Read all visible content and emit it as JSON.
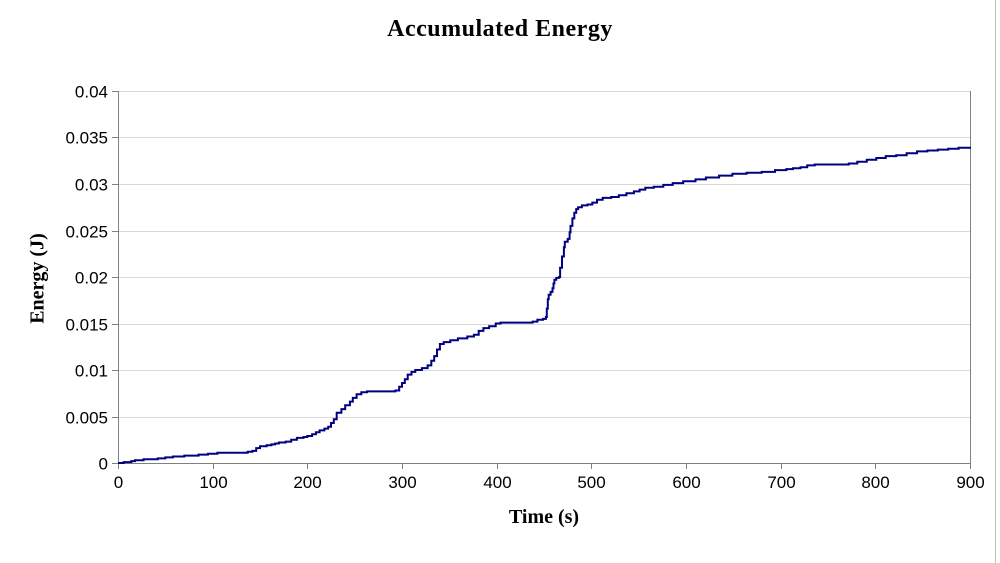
{
  "chart": {
    "title": "Accumulated Energy",
    "x_axis": {
      "label": "Time (s)",
      "ticks": [
        0,
        100,
        200,
        300,
        400,
        500,
        600,
        700,
        800,
        900
      ],
      "tick_labels": [
        "0",
        "100",
        "200",
        "300",
        "400",
        "500",
        "600",
        "700",
        "800",
        "900"
      ]
    },
    "y_axis": {
      "label": "Energy (J)",
      "ticks": [
        0,
        0.005,
        0.01,
        0.015,
        0.02,
        0.025,
        0.03,
        0.035,
        0.04
      ],
      "tick_labels": [
        "0",
        "0.005",
        "0.01",
        "0.015",
        "0.02",
        "0.025",
        "0.03",
        "0.035",
        "0.04"
      ]
    },
    "colors": {
      "line": "#000080",
      "gridline": "#d8d8d8",
      "axis": "#808080",
      "background": "#ffffff",
      "outer_border": "#c0c0c0"
    }
  },
  "chart_data": {
    "type": "line",
    "title": "Accumulated Energy",
    "xlabel": "Time (s)",
    "ylabel": "Energy (J)",
    "xlim": [
      0,
      900
    ],
    "ylim": [
      0,
      0.04
    ],
    "grid": true,
    "legend_position": "none",
    "series": [
      {
        "name": "Accumulated Energy",
        "color": "#000080",
        "step": true,
        "points": [
          [
            0,
            0.0
          ],
          [
            6,
            0.0001
          ],
          [
            14,
            0.0002
          ],
          [
            18,
            0.0003
          ],
          [
            27,
            0.0004
          ],
          [
            42,
            0.0005
          ],
          [
            50,
            0.0006
          ],
          [
            58,
            0.0007
          ],
          [
            70,
            0.0008
          ],
          [
            85,
            0.0009
          ],
          [
            95,
            0.001
          ],
          [
            105,
            0.0011
          ],
          [
            133,
            0.0011
          ],
          [
            137,
            0.0012
          ],
          [
            142,
            0.0013
          ],
          [
            146,
            0.0016
          ],
          [
            150,
            0.0018
          ],
          [
            157,
            0.0019
          ],
          [
            162,
            0.002
          ],
          [
            166,
            0.0021
          ],
          [
            170,
            0.0022
          ],
          [
            177,
            0.0023
          ],
          [
            183,
            0.0025
          ],
          [
            189,
            0.0027
          ],
          [
            196,
            0.0028
          ],
          [
            200,
            0.0029
          ],
          [
            205,
            0.0031
          ],
          [
            209,
            0.0033
          ],
          [
            213,
            0.0035
          ],
          [
            218,
            0.0037
          ],
          [
            222,
            0.0039
          ],
          [
            225,
            0.0043
          ],
          [
            228,
            0.0047
          ],
          [
            231,
            0.0054
          ],
          [
            236,
            0.0058
          ],
          [
            240,
            0.0062
          ],
          [
            245,
            0.0066
          ],
          [
            248,
            0.007
          ],
          [
            252,
            0.0074
          ],
          [
            257,
            0.0076
          ],
          [
            263,
            0.0077
          ],
          [
            293,
            0.0078
          ],
          [
            297,
            0.0082
          ],
          [
            300,
            0.0086
          ],
          [
            303,
            0.009
          ],
          [
            306,
            0.0095
          ],
          [
            310,
            0.0098
          ],
          [
            314,
            0.01
          ],
          [
            321,
            0.0102
          ],
          [
            327,
            0.0105
          ],
          [
            331,
            0.011
          ],
          [
            334,
            0.0115
          ],
          [
            337,
            0.0122
          ],
          [
            340,
            0.0128
          ],
          [
            344,
            0.013
          ],
          [
            351,
            0.0132
          ],
          [
            359,
            0.0134
          ],
          [
            369,
            0.0136
          ],
          [
            376,
            0.0138
          ],
          [
            381,
            0.0142
          ],
          [
            386,
            0.0145
          ],
          [
            392,
            0.0147
          ],
          [
            399,
            0.015
          ],
          [
            404,
            0.0151
          ],
          [
            438,
            0.0152
          ],
          [
            443,
            0.0154
          ],
          [
            449,
            0.0155
          ],
          [
            452,
            0.0157
          ],
          [
            453,
            0.0166
          ],
          [
            454,
            0.0176
          ],
          [
            455,
            0.0181
          ],
          [
            457,
            0.0184
          ],
          [
            459,
            0.0188
          ],
          [
            460,
            0.0193
          ],
          [
            461,
            0.0197
          ],
          [
            463,
            0.0199
          ],
          [
            466,
            0.02
          ],
          [
            467,
            0.021
          ],
          [
            469,
            0.0222
          ],
          [
            471,
            0.0232
          ],
          [
            472,
            0.0238
          ],
          [
            475,
            0.0241
          ],
          [
            477,
            0.0248
          ],
          [
            478,
            0.0255
          ],
          [
            480,
            0.0263
          ],
          [
            482,
            0.0269
          ],
          [
            484,
            0.0273
          ],
          [
            486,
            0.0275
          ],
          [
            490,
            0.0277
          ],
          [
            496,
            0.0278
          ],
          [
            501,
            0.028
          ],
          [
            506,
            0.0283
          ],
          [
            512,
            0.0285
          ],
          [
            521,
            0.0286
          ],
          [
            529,
            0.0288
          ],
          [
            537,
            0.029
          ],
          [
            545,
            0.0292
          ],
          [
            551,
            0.0294
          ],
          [
            557,
            0.0296
          ],
          [
            566,
            0.0297
          ],
          [
            576,
            0.0299
          ],
          [
            586,
            0.0301
          ],
          [
            597,
            0.0303
          ],
          [
            610,
            0.0305
          ],
          [
            621,
            0.0307
          ],
          [
            635,
            0.0309
          ],
          [
            649,
            0.0311
          ],
          [
            664,
            0.0312
          ],
          [
            680,
            0.0313
          ],
          [
            694,
            0.0315
          ],
          [
            706,
            0.0316
          ],
          [
            713,
            0.0317
          ],
          [
            721,
            0.0318
          ],
          [
            728,
            0.032
          ],
          [
            736,
            0.0321
          ],
          [
            764,
            0.0321
          ],
          [
            772,
            0.0322
          ],
          [
            781,
            0.0324
          ],
          [
            791,
            0.0326
          ],
          [
            801,
            0.0328
          ],
          [
            811,
            0.033
          ],
          [
            822,
            0.0331
          ],
          [
            833,
            0.0333
          ],
          [
            844,
            0.0335
          ],
          [
            855,
            0.0336
          ],
          [
            866,
            0.0337
          ],
          [
            877,
            0.0338
          ],
          [
            888,
            0.0339
          ],
          [
            900,
            0.034
          ]
        ]
      }
    ]
  }
}
